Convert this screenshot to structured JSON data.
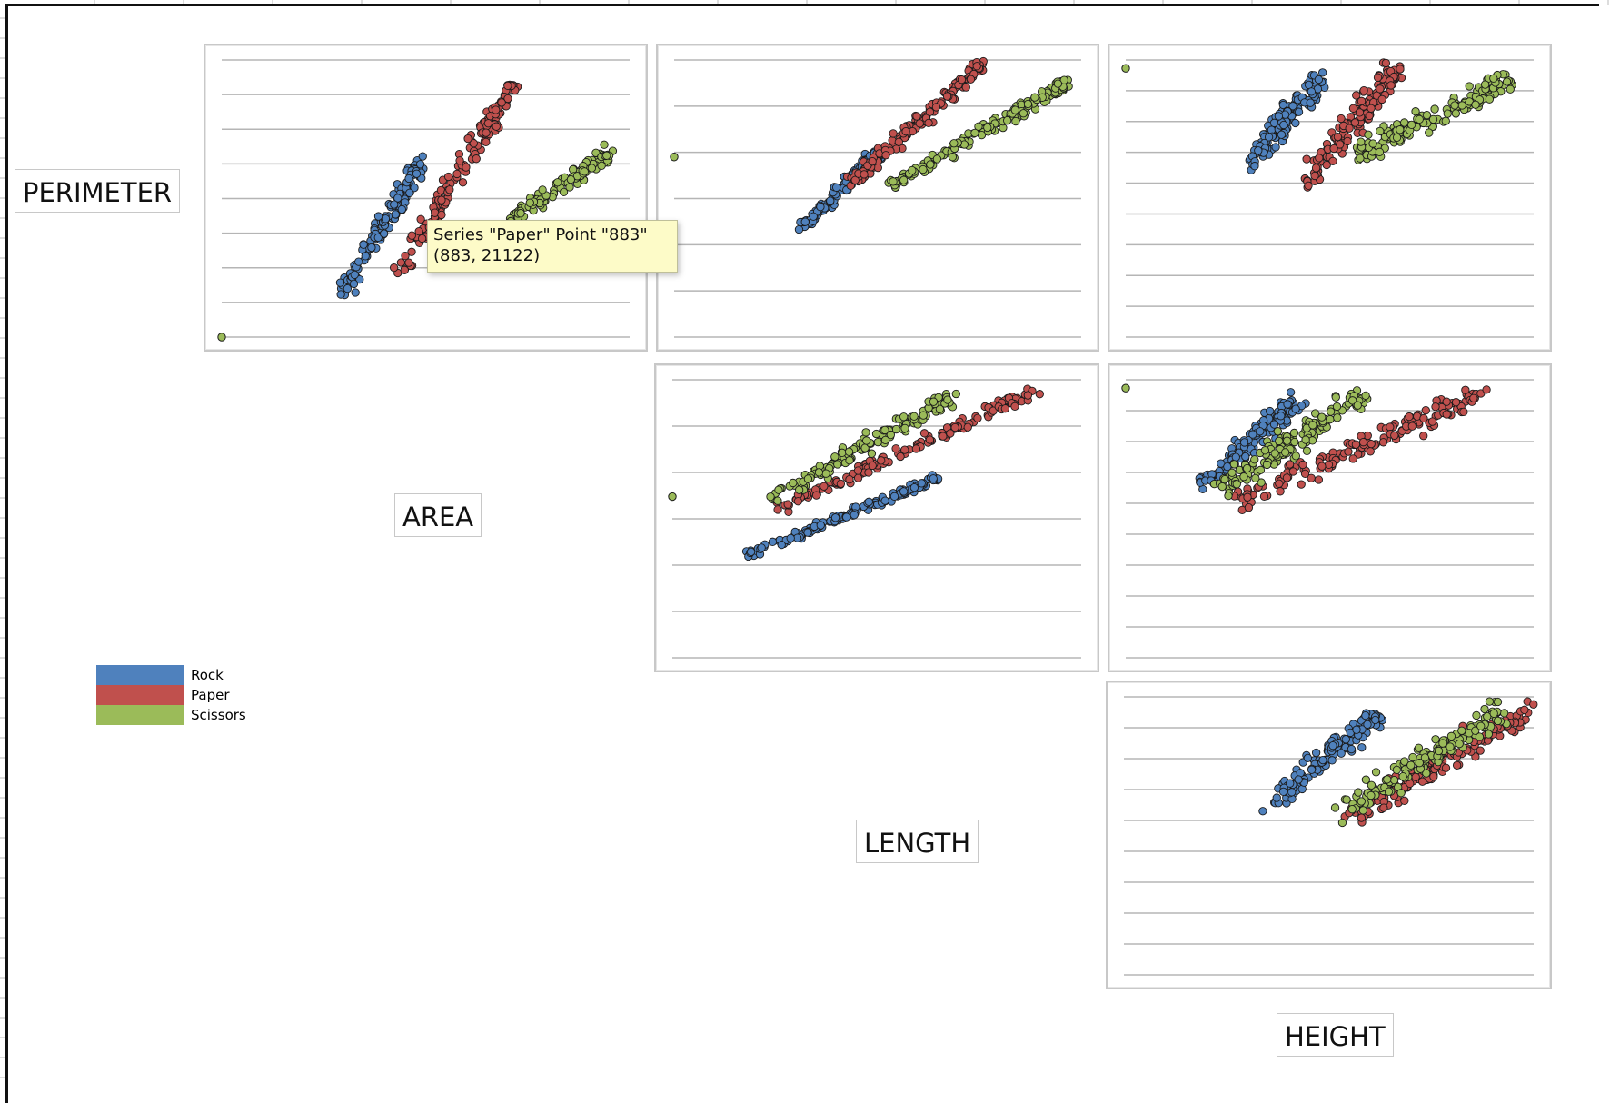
{
  "variables": [
    "PERIMETER",
    "AREA",
    "LENGTH",
    "HEIGHT"
  ],
  "legend": [
    {
      "label": "Rock",
      "color": "#4f81bd"
    },
    {
      "label": "Paper",
      "color": "#c0504d"
    },
    {
      "label": "Scissors",
      "color": "#9bbb59"
    }
  ],
  "tooltip": {
    "line1": "Series \"Paper\" Point \"883\"",
    "line2": "(883, 21122)"
  },
  "chart_data": [
    {
      "type": "scatter",
      "pair": "PERIMETER-AREA",
      "xlim": [
        0,
        1
      ],
      "ylim": [
        0,
        1
      ],
      "grid": true,
      "outlier": [
        0.0,
        0.0
      ],
      "series": [
        {
          "name": "Rock",
          "x": [
            0.3,
            0.49
          ],
          "y": [
            0.17,
            0.63
          ],
          "spread": 0.045
        },
        {
          "name": "Paper",
          "x": [
            0.44,
            0.72
          ],
          "y": [
            0.25,
            0.92
          ],
          "spread": 0.05
        },
        {
          "name": "Scissors",
          "x": [
            0.55,
            0.95
          ],
          "y": [
            0.27,
            0.66
          ],
          "spread": 0.04
        }
      ]
    },
    {
      "type": "scatter",
      "pair": "PERIMETER-LENGTH",
      "xlim": [
        0,
        1
      ],
      "ylim": [
        0,
        1
      ],
      "grid": true,
      "outlier": [
        0.0,
        0.65
      ],
      "series": [
        {
          "name": "Rock",
          "x": [
            0.31,
            0.5
          ],
          "y": [
            0.39,
            0.66
          ],
          "spread": 0.035
        },
        {
          "name": "Paper",
          "x": [
            0.43,
            0.76
          ],
          "y": [
            0.55,
            0.99
          ],
          "spread": 0.04
        },
        {
          "name": "Scissors",
          "x": [
            0.53,
            0.97
          ],
          "y": [
            0.55,
            0.92
          ],
          "spread": 0.035
        }
      ]
    },
    {
      "type": "scatter",
      "pair": "PERIMETER-HEIGHT",
      "xlim": [
        0,
        1
      ],
      "ylim": [
        0,
        1
      ],
      "grid": true,
      "outlier": [
        0.0,
        0.97
      ],
      "series": [
        {
          "name": "Rock",
          "x": [
            0.3,
            0.48
          ],
          "y": [
            0.62,
            0.94
          ],
          "spread": 0.06
        },
        {
          "name": "Paper",
          "x": [
            0.44,
            0.66
          ],
          "y": [
            0.56,
            0.96
          ],
          "spread": 0.07
        },
        {
          "name": "Scissors",
          "x": [
            0.56,
            0.94
          ],
          "y": [
            0.66,
            0.93
          ],
          "spread": 0.06
        }
      ]
    },
    {
      "type": "scatter",
      "pair": "AREA-LENGTH",
      "xlim": [
        0,
        1
      ],
      "ylim": [
        0,
        1
      ],
      "grid": true,
      "outlier": [
        0.0,
        0.58
      ],
      "series": [
        {
          "name": "Rock",
          "x": [
            0.19,
            0.65
          ],
          "y": [
            0.37,
            0.65
          ],
          "spread": 0.025
        },
        {
          "name": "Paper",
          "x": [
            0.26,
            0.9
          ],
          "y": [
            0.54,
            0.97
          ],
          "spread": 0.035
        },
        {
          "name": "Scissors",
          "x": [
            0.22,
            0.68
          ],
          "y": [
            0.56,
            0.93
          ],
          "spread": 0.045
        }
      ]
    },
    {
      "type": "scatter",
      "pair": "AREA-HEIGHT",
      "xlim": [
        0,
        1
      ],
      "ylim": [
        0,
        1
      ],
      "grid": true,
      "outlier": [
        0.0,
        0.97
      ],
      "series": [
        {
          "name": "Rock",
          "x": [
            0.19,
            0.42
          ],
          "y": [
            0.62,
            0.93
          ],
          "spread": 0.06
        },
        {
          "name": "Paper",
          "x": [
            0.26,
            0.88
          ],
          "y": [
            0.56,
            0.96
          ],
          "spread": 0.07
        },
        {
          "name": "Scissors",
          "x": [
            0.22,
            0.58
          ],
          "y": [
            0.6,
            0.94
          ],
          "spread": 0.07
        }
      ]
    },
    {
      "type": "scatter",
      "pair": "LENGTH-HEIGHT",
      "xlim": [
        0,
        1
      ],
      "ylim": [
        0,
        1
      ],
      "grid": true,
      "series": [
        {
          "name": "Rock",
          "x": [
            0.36,
            0.62
          ],
          "y": [
            0.62,
            0.94
          ],
          "spread": 0.06
        },
        {
          "name": "Paper",
          "x": [
            0.55,
            0.99
          ],
          "y": [
            0.56,
            0.96
          ],
          "spread": 0.07
        },
        {
          "name": "Scissors",
          "x": [
            0.54,
            0.92
          ],
          "y": [
            0.6,
            0.94
          ],
          "spread": 0.07
        }
      ]
    }
  ]
}
